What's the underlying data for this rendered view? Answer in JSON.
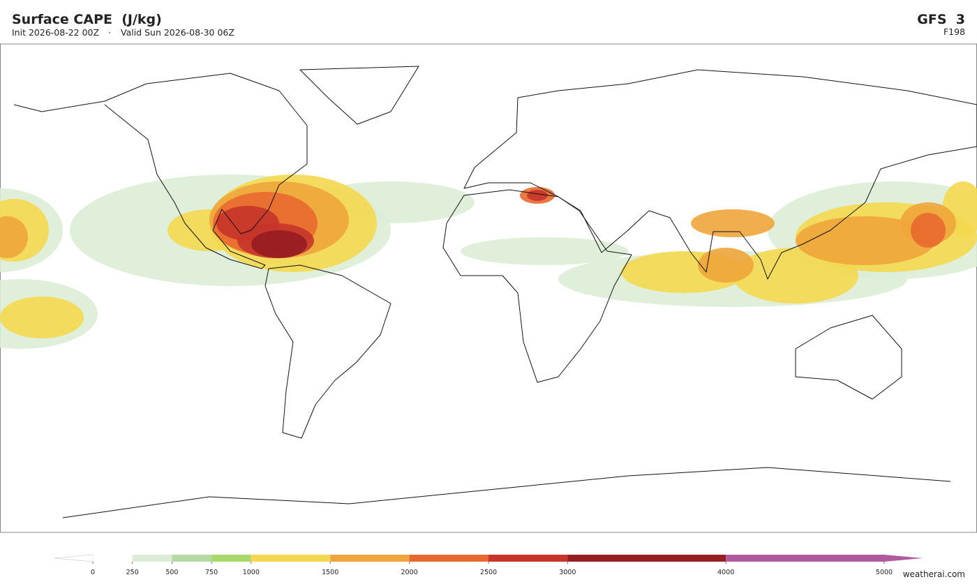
{
  "header": {
    "title": "Surface CAPE  (J/kg)",
    "init": "Init 2026-08-22 00Z",
    "separator": "·",
    "valid": "Valid Sun 2026-08-30 06Z",
    "model": "GFS  3",
    "forecast_hour": "F198"
  },
  "colorbar": {
    "ticks": [
      0,
      250,
      500,
      750,
      1000,
      1500,
      2000,
      2500,
      3000,
      4000,
      5000
    ],
    "colors": [
      "#ffffff",
      "#dcedd6",
      "#b3d9a4",
      "#a9d86b",
      "#f4d84f",
      "#f0a53b",
      "#e8692f",
      "#c6342a",
      "#961d21",
      "#b05b9f"
    ],
    "under_color": "#ffffff",
    "over_color": "#b05b9f"
  },
  "footer": {
    "credit": "weatherai.com"
  }
}
